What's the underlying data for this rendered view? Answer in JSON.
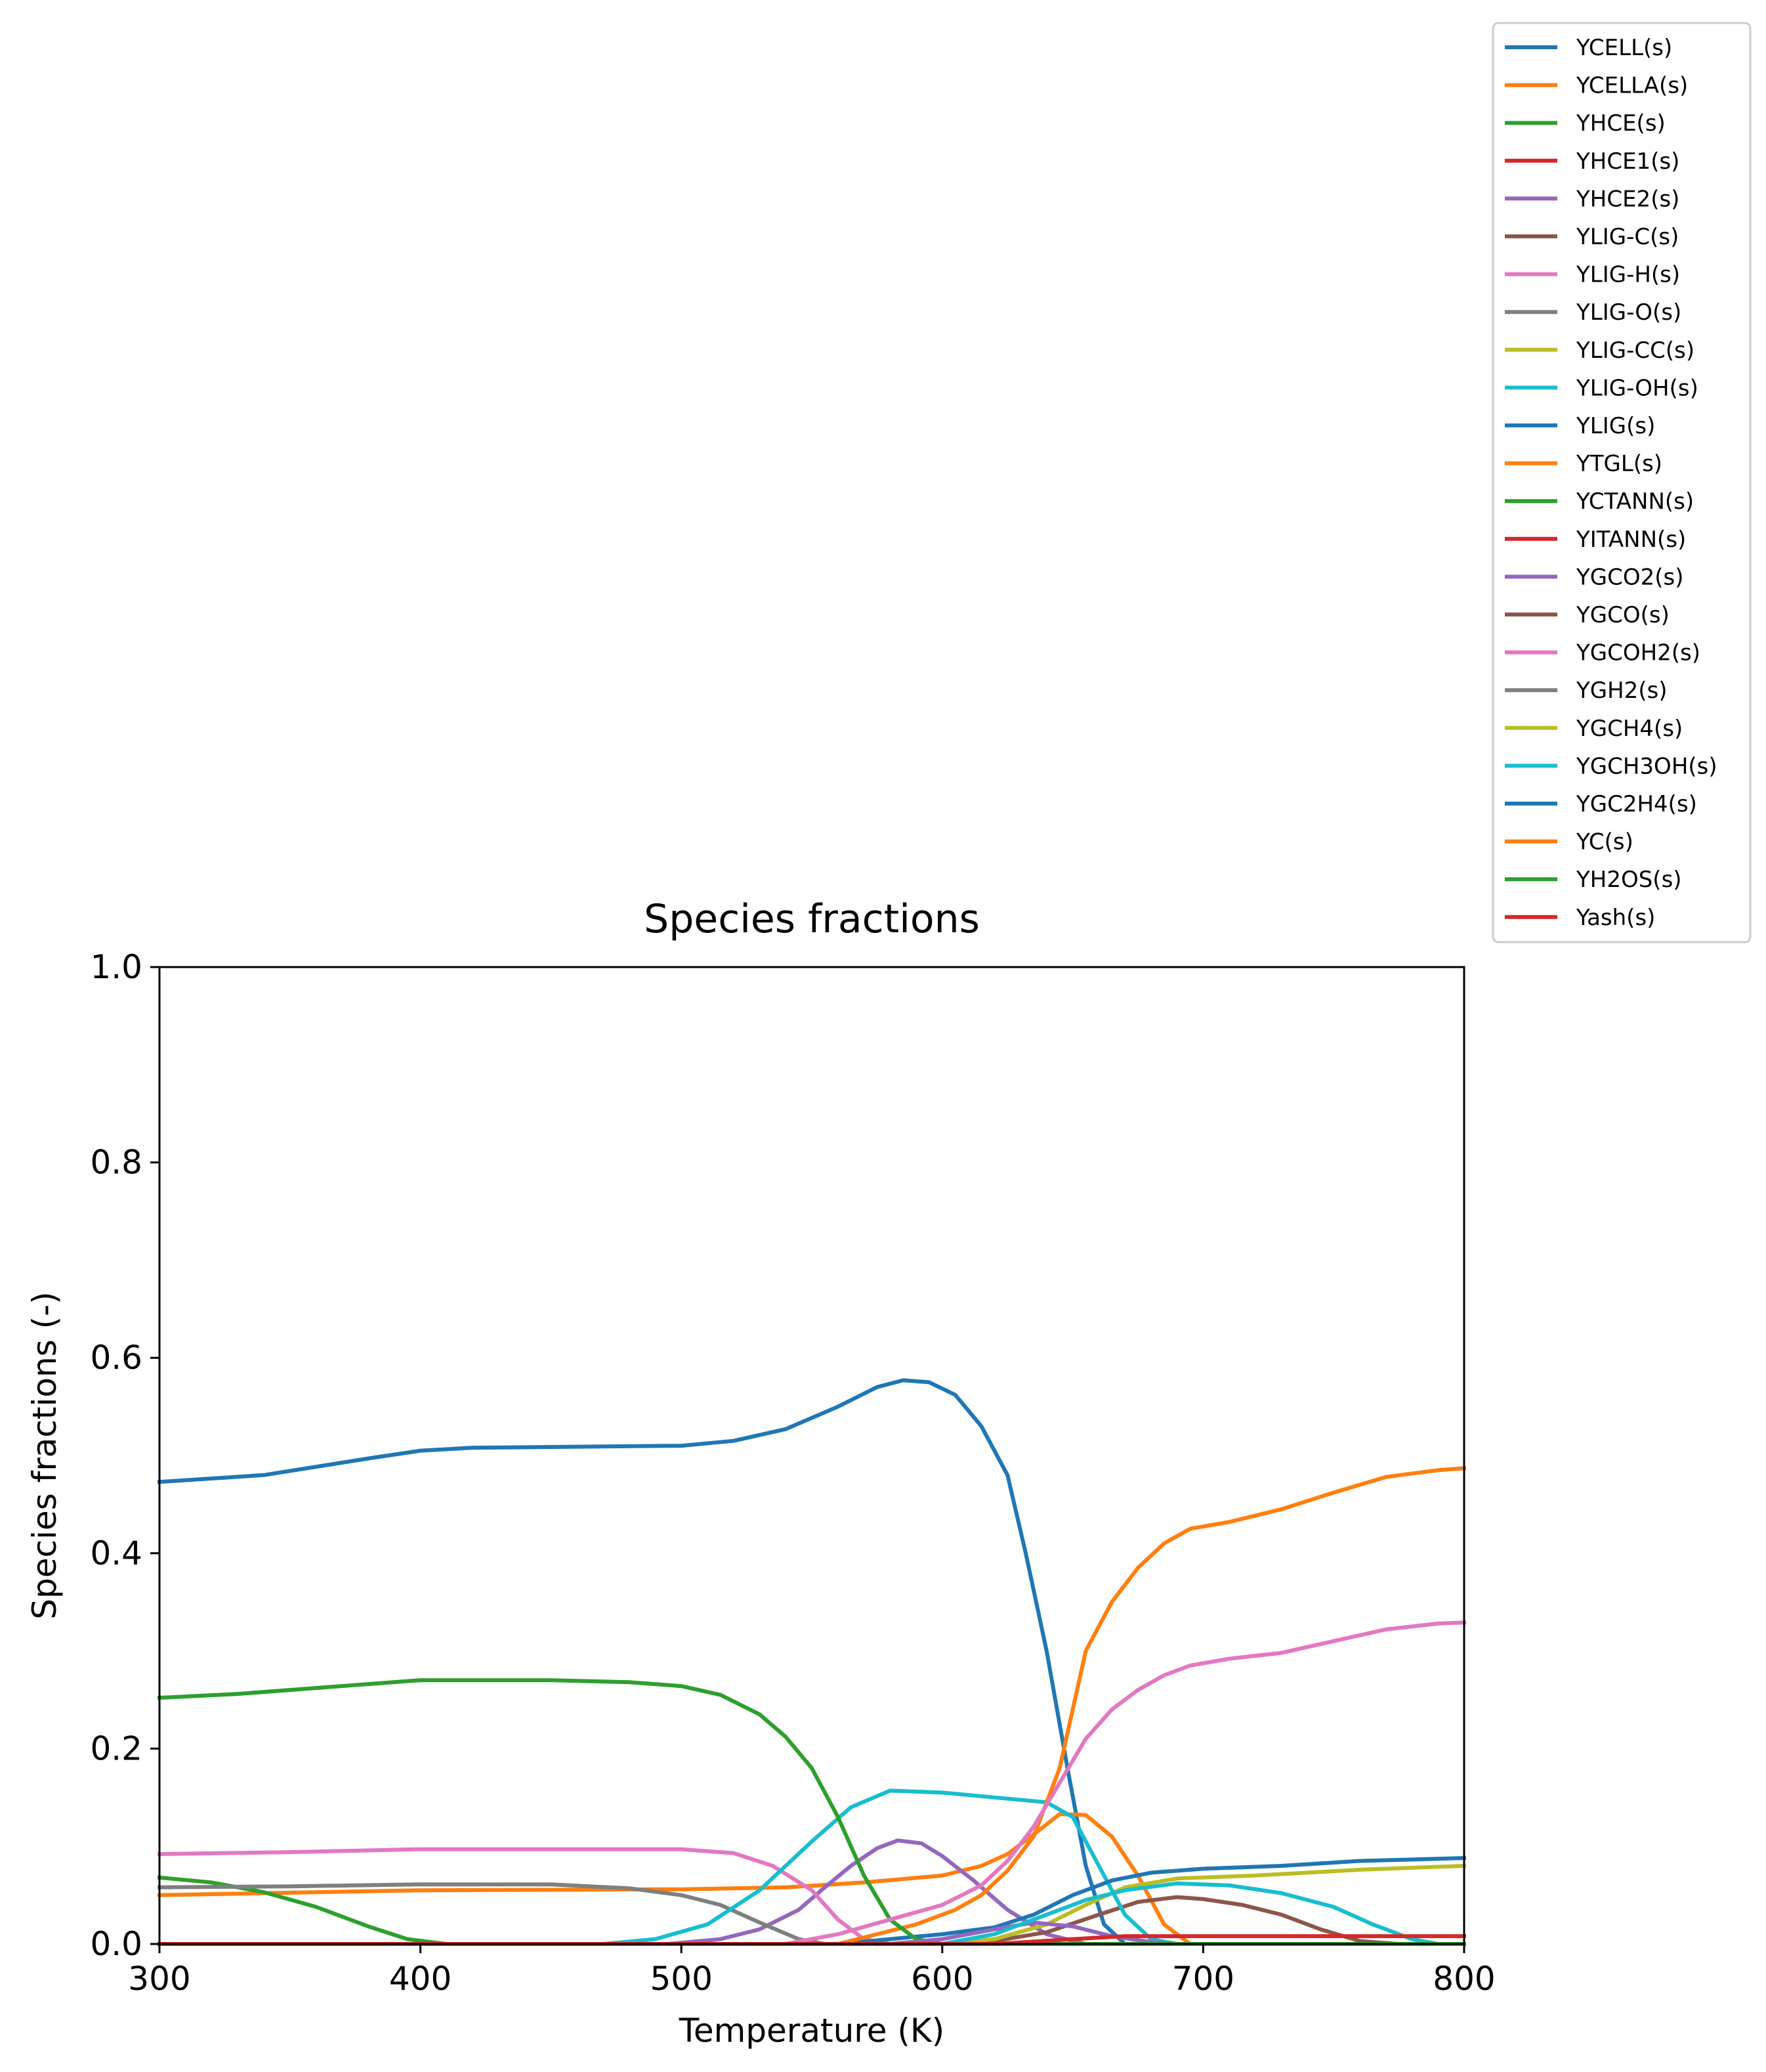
{
  "chart_data": {
    "type": "line",
    "title": "Species fractions",
    "xlabel": "Temperature (K)",
    "ylabel": "Species fractions (-)",
    "xlim": [
      300,
      800
    ],
    "ylim": [
      0,
      1
    ],
    "xticks": [
      "300",
      "400",
      "500",
      "600",
      "700",
      "800"
    ],
    "yticks": [
      "0.0",
      "0.2",
      "0.4",
      "0.6",
      "0.8",
      "1.0"
    ],
    "grid": false,
    "legend_position": "outside upper right",
    "series": [
      {
        "name": "YCELL(s)",
        "color": "#1f77b4",
        "points": [
          [
            300,
            0.473
          ],
          [
            340,
            0.48
          ],
          [
            380,
            0.497
          ],
          [
            400,
            0.505
          ],
          [
            420,
            0.508
          ],
          [
            500,
            0.51
          ],
          [
            520,
            0.515
          ],
          [
            540,
            0.527
          ],
          [
            560,
            0.55
          ],
          [
            575,
            0.57
          ],
          [
            585,
            0.577
          ],
          [
            595,
            0.575
          ],
          [
            605,
            0.562
          ],
          [
            615,
            0.53
          ],
          [
            625,
            0.48
          ],
          [
            632,
            0.4
          ],
          [
            640,
            0.3
          ],
          [
            648,
            0.18
          ],
          [
            655,
            0.08
          ],
          [
            662,
            0.02
          ],
          [
            670,
            0.0
          ],
          [
            800,
            0.0
          ]
        ]
      },
      {
        "name": "YCELLA(s)",
        "color": "#ff7f0e",
        "points": [
          [
            300,
            0.05
          ],
          [
            400,
            0.055
          ],
          [
            500,
            0.056
          ],
          [
            540,
            0.058
          ],
          [
            570,
            0.063
          ],
          [
            600,
            0.07
          ],
          [
            615,
            0.08
          ],
          [
            625,
            0.092
          ],
          [
            635,
            0.112
          ],
          [
            645,
            0.133
          ],
          [
            655,
            0.132
          ],
          [
            665,
            0.11
          ],
          [
            675,
            0.07
          ],
          [
            685,
            0.02
          ],
          [
            695,
            0.0
          ],
          [
            800,
            0.0
          ]
        ]
      },
      {
        "name": "YHCE(s)",
        "color": "#2ca02c",
        "points": [
          [
            300,
            0.068
          ],
          [
            320,
            0.063
          ],
          [
            340,
            0.053
          ],
          [
            360,
            0.038
          ],
          [
            380,
            0.018
          ],
          [
            395,
            0.005
          ],
          [
            410,
            0.0
          ],
          [
            800,
            0.0
          ]
        ]
      },
      {
        "name": "YHCE1(s)",
        "color": "#d62728",
        "points": [
          [
            300,
            0.0
          ],
          [
            800,
            0.0
          ]
        ]
      },
      {
        "name": "YHCE2(s)",
        "color": "#9467bd",
        "points": [
          [
            300,
            0.0
          ],
          [
            495,
            0.0
          ],
          [
            515,
            0.005
          ],
          [
            530,
            0.015
          ],
          [
            545,
            0.035
          ],
          [
            555,
            0.058
          ],
          [
            565,
            0.08
          ],
          [
            575,
            0.098
          ],
          [
            583,
            0.106
          ],
          [
            592,
            0.103
          ],
          [
            600,
            0.09
          ],
          [
            612,
            0.065
          ],
          [
            625,
            0.035
          ],
          [
            640,
            0.01
          ],
          [
            655,
            0.0
          ],
          [
            800,
            0.0
          ]
        ]
      },
      {
        "name": "YLIG-C(s)",
        "color": "#8c564b",
        "points": [
          [
            300,
            0.0
          ],
          [
            600,
            0.0
          ],
          [
            620,
            0.003
          ],
          [
            640,
            0.012
          ],
          [
            660,
            0.03
          ],
          [
            675,
            0.043
          ],
          [
            690,
            0.048
          ],
          [
            700,
            0.046
          ],
          [
            715,
            0.04
          ],
          [
            730,
            0.03
          ],
          [
            745,
            0.015
          ],
          [
            760,
            0.003
          ],
          [
            775,
            0.0
          ],
          [
            800,
            0.0
          ]
        ]
      },
      {
        "name": "YLIG-H(s)",
        "color": "#e377c2",
        "points": [
          [
            300,
            0.092
          ],
          [
            350,
            0.094
          ],
          [
            400,
            0.097
          ],
          [
            500,
            0.097
          ],
          [
            520,
            0.093
          ],
          [
            535,
            0.08
          ],
          [
            550,
            0.055
          ],
          [
            560,
            0.025
          ],
          [
            570,
            0.005
          ],
          [
            580,
            0.0
          ],
          [
            800,
            0.0
          ]
        ]
      },
      {
        "name": "YLIG-O(s)",
        "color": "#7f7f7f",
        "points": [
          [
            300,
            0.058
          ],
          [
            350,
            0.059
          ],
          [
            400,
            0.061
          ],
          [
            450,
            0.061
          ],
          [
            480,
            0.057
          ],
          [
            500,
            0.05
          ],
          [
            515,
            0.04
          ],
          [
            530,
            0.022
          ],
          [
            545,
            0.005
          ],
          [
            555,
            0.0
          ],
          [
            800,
            0.0
          ]
        ]
      },
      {
        "name": "YLIG-CC(s)",
        "color": "#bcbd22",
        "points": [
          [
            300,
            0.0
          ],
          [
            600,
            0.0
          ],
          [
            620,
            0.005
          ],
          [
            640,
            0.02
          ],
          [
            655,
            0.04
          ],
          [
            670,
            0.058
          ],
          [
            690,
            0.067
          ],
          [
            720,
            0.07
          ],
          [
            760,
            0.076
          ],
          [
            800,
            0.08
          ]
        ]
      },
      {
        "name": "YLIG-OH(s)",
        "color": "#17becf",
        "points": [
          [
            300,
            0.0
          ],
          [
            470,
            0.0
          ],
          [
            490,
            0.005
          ],
          [
            510,
            0.02
          ],
          [
            530,
            0.055
          ],
          [
            550,
            0.105
          ],
          [
            565,
            0.14
          ],
          [
            580,
            0.157
          ],
          [
            600,
            0.155
          ],
          [
            620,
            0.15
          ],
          [
            640,
            0.145
          ],
          [
            650,
            0.13
          ],
          [
            660,
            0.08
          ],
          [
            670,
            0.03
          ],
          [
            680,
            0.005
          ],
          [
            690,
            0.0
          ],
          [
            800,
            0.0
          ]
        ]
      },
      {
        "name": "YLIG(s)",
        "color": "#1f77b4",
        "points": [
          [
            300,
            0.0
          ],
          [
            560,
            0.0
          ],
          [
            580,
            0.005
          ],
          [
            600,
            0.01
          ],
          [
            620,
            0.017
          ],
          [
            635,
            0.03
          ],
          [
            650,
            0.05
          ],
          [
            665,
            0.065
          ],
          [
            680,
            0.073
          ],
          [
            700,
            0.077
          ],
          [
            730,
            0.08
          ],
          [
            760,
            0.085
          ],
          [
            800,
            0.088
          ]
        ]
      },
      {
        "name": "YTGL(s)",
        "color": "#ff7f0e",
        "points": [
          [
            300,
            0.0
          ],
          [
            560,
            0.0
          ],
          [
            575,
            0.01
          ],
          [
            590,
            0.02
          ],
          [
            605,
            0.035
          ],
          [
            615,
            0.05
          ],
          [
            625,
            0.075
          ],
          [
            635,
            0.11
          ],
          [
            645,
            0.18
          ],
          [
            655,
            0.3
          ],
          [
            665,
            0.35
          ],
          [
            675,
            0.385
          ],
          [
            685,
            0.41
          ],
          [
            695,
            0.425
          ],
          [
            710,
            0.432
          ],
          [
            730,
            0.445
          ],
          [
            750,
            0.462
          ],
          [
            770,
            0.478
          ],
          [
            790,
            0.485
          ],
          [
            800,
            0.487
          ]
        ]
      },
      {
        "name": "YCTANN(s)",
        "color": "#2ca02c",
        "points": [
          [
            300,
            0.252
          ],
          [
            330,
            0.256
          ],
          [
            360,
            0.262
          ],
          [
            400,
            0.27
          ],
          [
            450,
            0.27
          ],
          [
            480,
            0.268
          ],
          [
            500,
            0.264
          ],
          [
            515,
            0.255
          ],
          [
            530,
            0.235
          ],
          [
            540,
            0.212
          ],
          [
            550,
            0.18
          ],
          [
            560,
            0.13
          ],
          [
            570,
            0.07
          ],
          [
            580,
            0.025
          ],
          [
            590,
            0.005
          ],
          [
            600,
            0.0
          ],
          [
            800,
            0.0
          ]
        ]
      },
      {
        "name": "YITANN(s)",
        "color": "#d62728",
        "points": [
          [
            300,
            0.0
          ],
          [
            800,
            0.0
          ]
        ]
      },
      {
        "name": "YGCO2(s)",
        "color": "#9467bd",
        "points": [
          [
            300,
            0.0
          ],
          [
            580,
            0.0
          ],
          [
            600,
            0.005
          ],
          [
            620,
            0.015
          ],
          [
            635,
            0.022
          ],
          [
            650,
            0.018
          ],
          [
            665,
            0.008
          ],
          [
            680,
            0.002
          ],
          [
            690,
            0.0
          ],
          [
            800,
            0.0
          ]
        ]
      },
      {
        "name": "YGCO(s)",
        "color": "#8c564b",
        "points": [
          [
            300,
            0.0
          ],
          [
            800,
            0.0
          ]
        ]
      },
      {
        "name": "YGCOH2(s)",
        "color": "#e377c2",
        "points": [
          [
            300,
            0.0
          ],
          [
            540,
            0.0
          ],
          [
            560,
            0.01
          ],
          [
            580,
            0.025
          ],
          [
            600,
            0.04
          ],
          [
            615,
            0.06
          ],
          [
            625,
            0.085
          ],
          [
            635,
            0.12
          ],
          [
            645,
            0.165
          ],
          [
            655,
            0.21
          ],
          [
            665,
            0.24
          ],
          [
            675,
            0.26
          ],
          [
            685,
            0.275
          ],
          [
            695,
            0.285
          ],
          [
            710,
            0.292
          ],
          [
            730,
            0.298
          ],
          [
            750,
            0.31
          ],
          [
            770,
            0.322
          ],
          [
            790,
            0.328
          ],
          [
            800,
            0.329
          ]
        ]
      },
      {
        "name": "YGH2(s)",
        "color": "#7f7f7f",
        "points": [
          [
            300,
            0.0
          ],
          [
            800,
            0.0
          ]
        ]
      },
      {
        "name": "YGCH4(s)",
        "color": "#bcbd22",
        "points": [
          [
            300,
            0.0
          ],
          [
            800,
            0.0
          ]
        ]
      },
      {
        "name": "YGCH3OH(s)",
        "color": "#17becf",
        "points": [
          [
            300,
            0.0
          ],
          [
            600,
            0.0
          ],
          [
            620,
            0.01
          ],
          [
            640,
            0.03
          ],
          [
            655,
            0.045
          ],
          [
            670,
            0.055
          ],
          [
            690,
            0.062
          ],
          [
            710,
            0.06
          ],
          [
            730,
            0.052
          ],
          [
            750,
            0.038
          ],
          [
            765,
            0.02
          ],
          [
            780,
            0.005
          ],
          [
            790,
            0.0
          ],
          [
            800,
            0.0
          ]
        ]
      },
      {
        "name": "YGC2H4(s)",
        "color": "#1f77b4",
        "points": [
          [
            300,
            0.0
          ],
          [
            800,
            0.0
          ]
        ]
      },
      {
        "name": "YC(s)",
        "color": "#ff7f0e",
        "points": [
          [
            300,
            0.0
          ],
          [
            800,
            0.0
          ]
        ]
      },
      {
        "name": "YH2OS(s)",
        "color": "#2ca02c",
        "points": [
          [
            300,
            0.0
          ],
          [
            800,
            0.0
          ]
        ]
      },
      {
        "name": "Yash(s)",
        "color": "#d62728",
        "points": [
          [
            300,
            0.0
          ],
          [
            620,
            0.0
          ],
          [
            650,
            0.005
          ],
          [
            670,
            0.008
          ],
          [
            800,
            0.008
          ]
        ]
      }
    ]
  }
}
